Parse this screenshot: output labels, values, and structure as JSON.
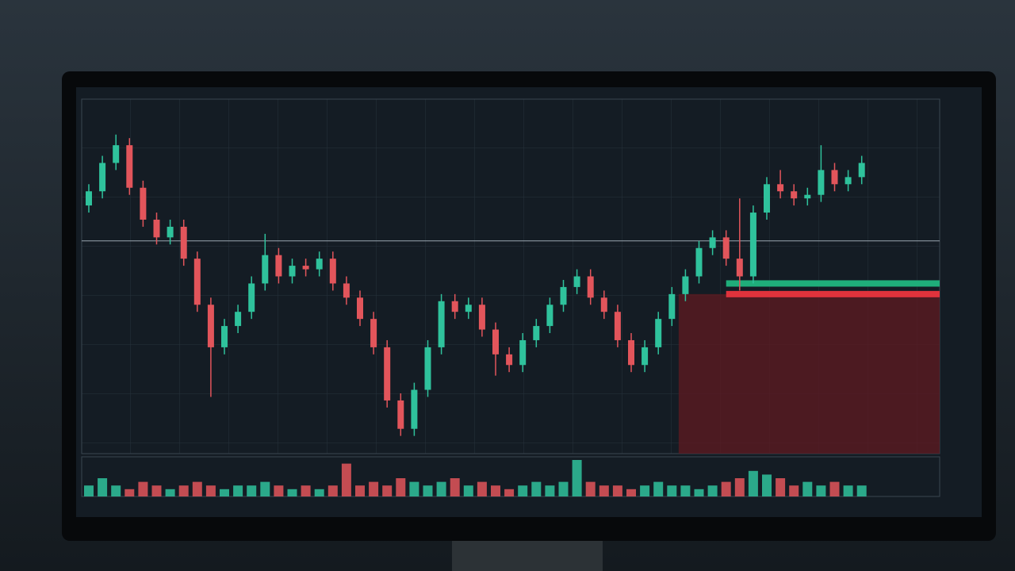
{
  "chart_data": {
    "type": "candlestick",
    "ylim": [
      0,
      100
    ],
    "open": [
      70,
      74,
      82,
      87,
      75,
      66,
      61,
      64,
      55,
      42,
      30,
      36,
      40,
      48,
      56,
      50,
      53,
      52,
      55,
      48,
      44,
      38,
      30,
      15,
      7,
      18,
      30,
      43,
      40,
      42,
      35,
      28,
      25,
      32,
      36,
      42,
      47,
      50,
      44,
      40,
      32,
      25,
      30,
      38,
      45,
      50,
      58,
      61,
      55,
      50,
      68,
      76,
      74,
      72,
      73,
      80,
      76,
      78
    ],
    "high": [
      76,
      84,
      90,
      89,
      77,
      68,
      66,
      66,
      57,
      44,
      38,
      42,
      50,
      62,
      58,
      55,
      55,
      57,
      57,
      50,
      46,
      40,
      32,
      17,
      20,
      32,
      45,
      45,
      44,
      44,
      37,
      30,
      34,
      38,
      44,
      49,
      52,
      52,
      46,
      42,
      34,
      32,
      40,
      47,
      52,
      60,
      63,
      63,
      72,
      70,
      78,
      80,
      76,
      75,
      87,
      82,
      80,
      84
    ],
    "low": [
      68,
      72,
      80,
      73,
      64,
      59,
      59,
      53,
      40,
      16,
      28,
      34,
      38,
      46,
      48,
      48,
      50,
      50,
      46,
      42,
      36,
      28,
      13,
      5,
      5,
      16,
      28,
      38,
      38,
      33,
      22,
      23,
      23,
      30,
      34,
      40,
      45,
      42,
      38,
      30,
      23,
      23,
      28,
      36,
      43,
      48,
      56,
      53,
      46,
      48,
      66,
      72,
      70,
      70,
      71,
      74,
      74,
      76
    ],
    "close": [
      74,
      82,
      87,
      75,
      66,
      61,
      64,
      55,
      42,
      30,
      36,
      40,
      48,
      56,
      50,
      53,
      52,
      55,
      48,
      44,
      38,
      30,
      15,
      7,
      18,
      30,
      43,
      40,
      42,
      35,
      28,
      25,
      32,
      36,
      42,
      47,
      50,
      44,
      40,
      32,
      25,
      30,
      38,
      45,
      50,
      58,
      61,
      55,
      50,
      68,
      76,
      74,
      72,
      73,
      80,
      76,
      78,
      82
    ],
    "volume": [
      3,
      5,
      3,
      2,
      4,
      3,
      2,
      3,
      4,
      3,
      2,
      3,
      3,
      4,
      3,
      2,
      3,
      2,
      3,
      9,
      3,
      4,
      3,
      5,
      4,
      3,
      4,
      5,
      3,
      4,
      3,
      2,
      3,
      4,
      3,
      4,
      10,
      4,
      3,
      3,
      2,
      3,
      4,
      3,
      3,
      2,
      3,
      4,
      5,
      7,
      6,
      5,
      3,
      4,
      3,
      4,
      3,
      3
    ],
    "volume_lim": [
      0,
      10
    ],
    "up_color": "#2fc29c",
    "down_color": "#e2555b",
    "price_line": 60,
    "levels": [
      {
        "value": 48,
        "color": "#1fae7a"
      },
      {
        "value": 45,
        "color": "#e0333c"
      }
    ],
    "zone": {
      "start": 44,
      "low": 0,
      "high": 45,
      "color": "#5a1a20"
    }
  }
}
